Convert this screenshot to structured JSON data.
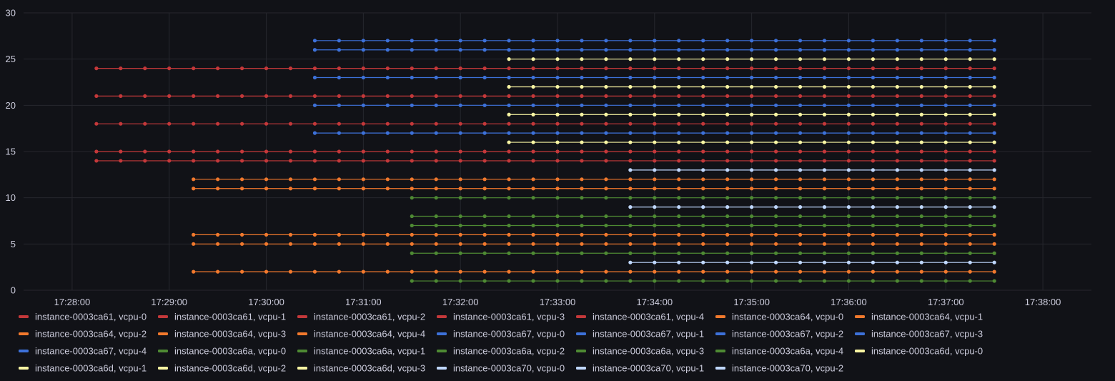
{
  "colors": {
    "background": "#111217",
    "grid": "#26272d",
    "text": "#ccccdc",
    "red": "#c4383a",
    "orange": "#f2792d",
    "blue": "#3d71d9",
    "green": "#4e8a33",
    "yellow": "#f9f5a3",
    "lightblue": "#c0d8ff"
  },
  "chart_data": {
    "type": "line",
    "title": "",
    "xlabel": "",
    "ylabel": "",
    "xlim": [
      "17:27:30",
      "17:38:30"
    ],
    "ylim": [
      0,
      30
    ],
    "y_ticks": [
      0,
      5,
      10,
      15,
      20,
      25,
      30
    ],
    "x_ticks": [
      "17:28:00",
      "17:29:00",
      "17:30:00",
      "17:31:00",
      "17:32:00",
      "17:33:00",
      "17:34:00",
      "17:35:00",
      "17:36:00",
      "17:37:00",
      "17:38:00"
    ],
    "point_interval_seconds": 15,
    "series_end": "17:37:30",
    "grid": true,
    "legend_position": "bottom",
    "series": [
      {
        "name": "instance-0003ca61, vcpu-0",
        "color_key": "red",
        "value": 24,
        "start": "17:28:15"
      },
      {
        "name": "instance-0003ca61, vcpu-1",
        "color_key": "red",
        "value": 21,
        "start": "17:28:15"
      },
      {
        "name": "instance-0003ca61, vcpu-2",
        "color_key": "red",
        "value": 18,
        "start": "17:28:15"
      },
      {
        "name": "instance-0003ca61, vcpu-3",
        "color_key": "red",
        "value": 15,
        "start": "17:28:15"
      },
      {
        "name": "instance-0003ca61, vcpu-4",
        "color_key": "red",
        "value": 14,
        "start": "17:28:15"
      },
      {
        "name": "instance-0003ca64, vcpu-0",
        "color_key": "orange",
        "value": 12,
        "start": "17:29:15"
      },
      {
        "name": "instance-0003ca64, vcpu-1",
        "color_key": "orange",
        "value": 11,
        "start": "17:29:15"
      },
      {
        "name": "instance-0003ca64, vcpu-2",
        "color_key": "orange",
        "value": 6,
        "start": "17:29:15"
      },
      {
        "name": "instance-0003ca64, vcpu-3",
        "color_key": "orange",
        "value": 5,
        "start": "17:29:15"
      },
      {
        "name": "instance-0003ca64, vcpu-4",
        "color_key": "orange",
        "value": 2,
        "start": "17:29:15"
      },
      {
        "name": "instance-0003ca67, vcpu-0",
        "color_key": "blue",
        "value": 27,
        "start": "17:30:30"
      },
      {
        "name": "instance-0003ca67, vcpu-1",
        "color_key": "blue",
        "value": 26,
        "start": "17:30:30"
      },
      {
        "name": "instance-0003ca67, vcpu-2",
        "color_key": "blue",
        "value": 23,
        "start": "17:30:30"
      },
      {
        "name": "instance-0003ca67, vcpu-3",
        "color_key": "blue",
        "value": 20,
        "start": "17:30:30"
      },
      {
        "name": "instance-0003ca67, vcpu-4",
        "color_key": "blue",
        "value": 17,
        "start": "17:30:30"
      },
      {
        "name": "instance-0003ca6a, vcpu-0",
        "color_key": "green",
        "value": 10,
        "start": "17:31:30"
      },
      {
        "name": "instance-0003ca6a, vcpu-1",
        "color_key": "green",
        "value": 8,
        "start": "17:31:30"
      },
      {
        "name": "instance-0003ca6a, vcpu-2",
        "color_key": "green",
        "value": 7,
        "start": "17:31:30"
      },
      {
        "name": "instance-0003ca6a, vcpu-3",
        "color_key": "green",
        "value": 4,
        "start": "17:31:30"
      },
      {
        "name": "instance-0003ca6a, vcpu-4",
        "color_key": "green",
        "value": 1,
        "start": "17:31:30"
      },
      {
        "name": "instance-0003ca6d, vcpu-0",
        "color_key": "yellow",
        "value": 25,
        "start": "17:32:30"
      },
      {
        "name": "instance-0003ca6d, vcpu-1",
        "color_key": "yellow",
        "value": 22,
        "start": "17:32:30"
      },
      {
        "name": "instance-0003ca6d, vcpu-2",
        "color_key": "yellow",
        "value": 19,
        "start": "17:32:30"
      },
      {
        "name": "instance-0003ca6d, vcpu-3",
        "color_key": "yellow",
        "value": 16,
        "start": "17:32:30"
      },
      {
        "name": "instance-0003ca70, vcpu-0",
        "color_key": "lightblue",
        "value": 13,
        "start": "17:33:45"
      },
      {
        "name": "instance-0003ca70, vcpu-1",
        "color_key": "lightblue",
        "value": 9,
        "start": "17:33:45"
      },
      {
        "name": "instance-0003ca70, vcpu-2",
        "color_key": "lightblue",
        "value": 3,
        "start": "17:33:45"
      }
    ]
  }
}
